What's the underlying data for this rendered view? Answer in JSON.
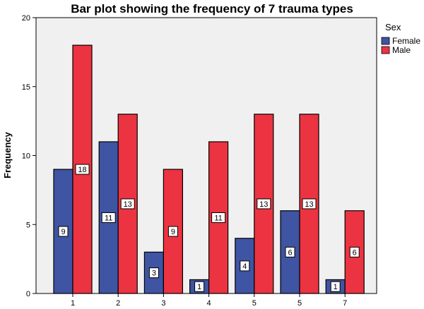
{
  "chart_data": {
    "type": "bar",
    "title": "Bar plot showing the frequency of 7 trauma types",
    "xlabel": "",
    "ylabel": "Frequency",
    "categories": [
      "1",
      "2",
      "3",
      "4",
      "5",
      "5",
      "7"
    ],
    "series": [
      {
        "name": "Female",
        "values": [
          9,
          11,
          3,
          1,
          4,
          6,
          1
        ],
        "color": "#3f54a2"
      },
      {
        "name": "Male",
        "values": [
          18,
          13,
          9,
          11,
          13,
          13,
          6
        ],
        "color": "#ec3341"
      }
    ],
    "ylim": [
      0,
      20
    ],
    "yticks": [
      0,
      5,
      10,
      15,
      20
    ],
    "legend": {
      "title": "Sex",
      "placement": "top-right"
    },
    "plot_background": "#f0f0f0",
    "grid": false
  }
}
